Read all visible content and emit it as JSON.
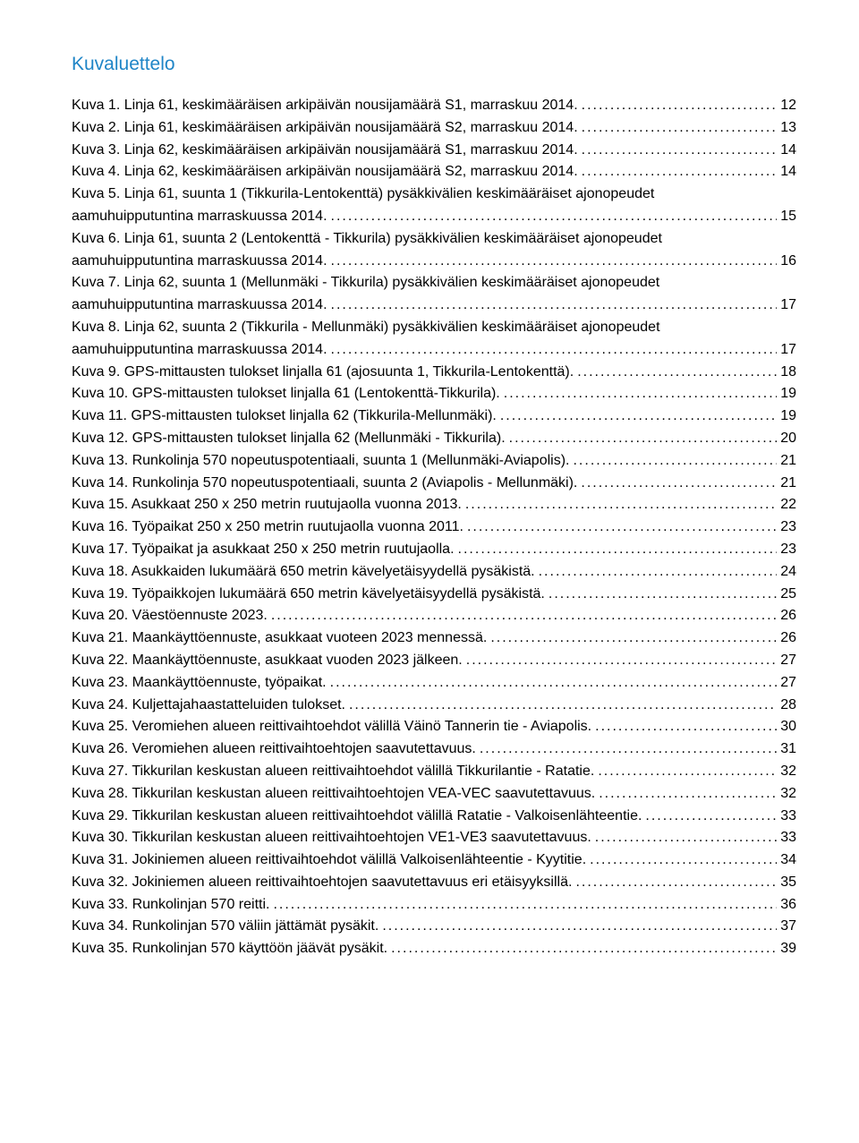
{
  "title": "Kuvaluettelo",
  "title_color": "#1f85c7",
  "text_color": "#000000",
  "background_color": "#ffffff",
  "font_family": "Arial",
  "body_fontsize": 16,
  "title_fontsize": 21,
  "entries": [
    {
      "lines": [
        "Kuva 1. Linja 61, keskimääräisen arkipäivän nousijamäärä S1, marraskuu 2014."
      ],
      "page": "12"
    },
    {
      "lines": [
        "Kuva 2. Linja 61, keskimääräisen arkipäivän nousijamäärä S2, marraskuu 2014."
      ],
      "page": "13"
    },
    {
      "lines": [
        "Kuva 3. Linja 62, keskimääräisen arkipäivän nousijamäärä S1, marraskuu 2014."
      ],
      "page": "14"
    },
    {
      "lines": [
        "Kuva 4. Linja 62, keskimääräisen arkipäivän nousijamäärä S2, marraskuu 2014."
      ],
      "page": "14"
    },
    {
      "lines": [
        "Kuva 5. Linja 61, suunta 1 (Tikkurila-Lentokenttä) pysäkkivälien keskimääräiset ajonopeudet",
        "aamuhuipputuntina marraskuussa 2014."
      ],
      "page": "15"
    },
    {
      "lines": [
        "Kuva 6. Linja 61, suunta 2 (Lentokenttä - Tikkurila) pysäkkivälien keskimääräiset ajonopeudet",
        "aamuhuipputuntina marraskuussa 2014."
      ],
      "page": "16"
    },
    {
      "lines": [
        "Kuva 7. Linja 62, suunta 1 (Mellunmäki - Tikkurila) pysäkkivälien keskimääräiset ajonopeudet",
        "aamuhuipputuntina marraskuussa 2014."
      ],
      "page": "17"
    },
    {
      "lines": [
        "Kuva 8. Linja 62, suunta 2 (Tikkurila - Mellunmäki) pysäkkivälien keskimääräiset ajonopeudet",
        "aamuhuipputuntina marraskuussa 2014."
      ],
      "page": "17"
    },
    {
      "lines": [
        "Kuva 9. GPS-mittausten tulokset linjalla 61 (ajosuunta 1, Tikkurila-Lentokenttä)."
      ],
      "page": "18"
    },
    {
      "lines": [
        "Kuva 10. GPS-mittausten tulokset linjalla 61 (Lentokenttä-Tikkurila)."
      ],
      "page": "19"
    },
    {
      "lines": [
        "Kuva 11. GPS-mittausten tulokset linjalla 62 (Tikkurila-Mellunmäki)."
      ],
      "page": "19"
    },
    {
      "lines": [
        "Kuva 12. GPS-mittausten tulokset linjalla 62 (Mellunmäki - Tikkurila)."
      ],
      "page": "20"
    },
    {
      "lines": [
        "Kuva 13. Runkolinja 570 nopeutuspotentiaali, suunta 1 (Mellunmäki-Aviapolis)."
      ],
      "page": "21"
    },
    {
      "lines": [
        "Kuva 14. Runkolinja 570 nopeutuspotentiaali, suunta 2 (Aviapolis - Mellunmäki)."
      ],
      "page": "21"
    },
    {
      "lines": [
        "Kuva 15. Asukkaat 250 x 250 metrin ruutujaolla vuonna 2013."
      ],
      "page": "22"
    },
    {
      "lines": [
        "Kuva 16. Työpaikat 250 x 250 metrin ruutujaolla vuonna 2011."
      ],
      "page": "23"
    },
    {
      "lines": [
        "Kuva 17. Työpaikat ja asukkaat 250 x 250 metrin ruutujaolla."
      ],
      "page": "23"
    },
    {
      "lines": [
        "Kuva 18. Asukkaiden lukumäärä 650 metrin kävelyetäisyydellä pysäkistä."
      ],
      "page": "24"
    },
    {
      "lines": [
        "Kuva 19. Työpaikkojen lukumäärä 650 metrin kävelyetäisyydellä pysäkistä."
      ],
      "page": "25"
    },
    {
      "lines": [
        "Kuva 20. Väestöennuste 2023."
      ],
      "page": "26"
    },
    {
      "lines": [
        "Kuva 21. Maankäyttöennuste, asukkaat vuoteen 2023 mennessä."
      ],
      "page": "26"
    },
    {
      "lines": [
        "Kuva 22. Maankäyttöennuste, asukkaat vuoden 2023 jälkeen."
      ],
      "page": "27"
    },
    {
      "lines": [
        "Kuva 23. Maankäyttöennuste, työpaikat."
      ],
      "page": "27"
    },
    {
      "lines": [
        "Kuva 24. Kuljettajahaastatteluiden tulokset."
      ],
      "page": "28"
    },
    {
      "lines": [
        "Kuva 25. Veromiehen alueen reittivaihtoehdot välillä Väinö Tannerin tie - Aviapolis."
      ],
      "page": "30"
    },
    {
      "lines": [
        "Kuva 26. Veromiehen alueen reittivaihtoehtojen saavutettavuus."
      ],
      "page": "31"
    },
    {
      "lines": [
        "Kuva 27. Tikkurilan keskustan alueen reittivaihtoehdot välillä Tikkurilantie - Ratatie."
      ],
      "page": "32"
    },
    {
      "lines": [
        "Kuva 28. Tikkurilan keskustan alueen reittivaihtoehtojen VEA-VEC saavutettavuus."
      ],
      "page": "32"
    },
    {
      "lines": [
        "Kuva 29. Tikkurilan keskustan alueen reittivaihtoehdot välillä Ratatie - Valkoisenlähteentie."
      ],
      "page": "33"
    },
    {
      "lines": [
        "Kuva 30. Tikkurilan keskustan alueen reittivaihtoehtojen VE1-VE3 saavutettavuus."
      ],
      "page": "33"
    },
    {
      "lines": [
        "Kuva 31. Jokiniemen alueen reittivaihtoehdot välillä Valkoisenlähteentie - Kyytitie."
      ],
      "page": "34"
    },
    {
      "lines": [
        "Kuva 32. Jokiniemen alueen reittivaihtoehtojen saavutettavuus eri etäisyyksillä."
      ],
      "page": "35"
    },
    {
      "lines": [
        "Kuva 33. Runkolinjan 570 reitti."
      ],
      "page": "36"
    },
    {
      "lines": [
        "Kuva 34. Runkolinjan 570 väliin jättämät pysäkit."
      ],
      "page": "37"
    },
    {
      "lines": [
        "Kuva 35. Runkolinjan 570 käyttöön jäävät pysäkit."
      ],
      "page": "39"
    }
  ]
}
